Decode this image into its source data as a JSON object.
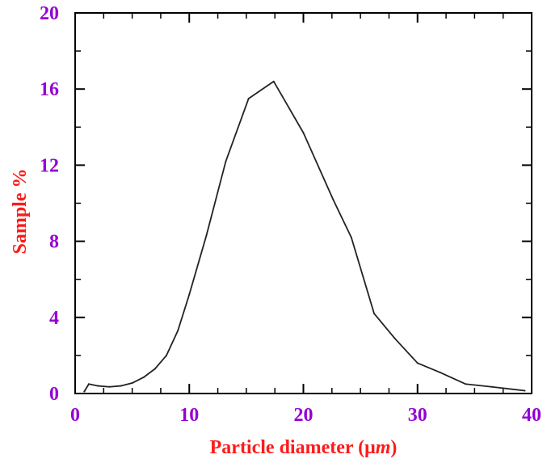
{
  "chart_data": {
    "type": "line",
    "title": "",
    "xlabel_main": "Particle diameter (",
    "xlabel_mu": "μ",
    "xlabel_unit": "m",
    "xlabel_close": ")",
    "ylabel": "Sample %",
    "xlim": [
      0,
      40
    ],
    "ylim": [
      0,
      20
    ],
    "x_ticks": [
      0,
      10,
      20,
      30,
      40
    ],
    "y_ticks": [
      0,
      4,
      8,
      12,
      16,
      20
    ],
    "x_minor_step": 2.5,
    "y_minor_step": 2,
    "grid": false,
    "legend": "none",
    "series": [
      {
        "x": [
          0.8,
          1.2,
          2.0,
          3.0,
          4.0,
          5.0,
          6.0,
          7.0,
          8.0,
          9.0,
          10.0,
          11.5,
          13.2,
          15.2,
          17.4,
          20.0,
          22.6,
          24.2,
          26.2,
          28.0,
          30.0,
          32.0,
          34.2,
          36.5,
          39.4
        ],
        "y": [
          0.1,
          0.5,
          0.4,
          0.35,
          0.4,
          0.55,
          0.85,
          1.3,
          2.0,
          3.3,
          5.2,
          8.3,
          12.2,
          15.5,
          16.4,
          13.7,
          10.2,
          8.2,
          4.2,
          2.9,
          1.6,
          1.1,
          0.5,
          0.35,
          0.15
        ]
      }
    ]
  },
  "colors": {
    "tick_label": "#9400d3",
    "axis_title": "#ff1a1a",
    "line": "#222222",
    "frame": "#000000"
  }
}
